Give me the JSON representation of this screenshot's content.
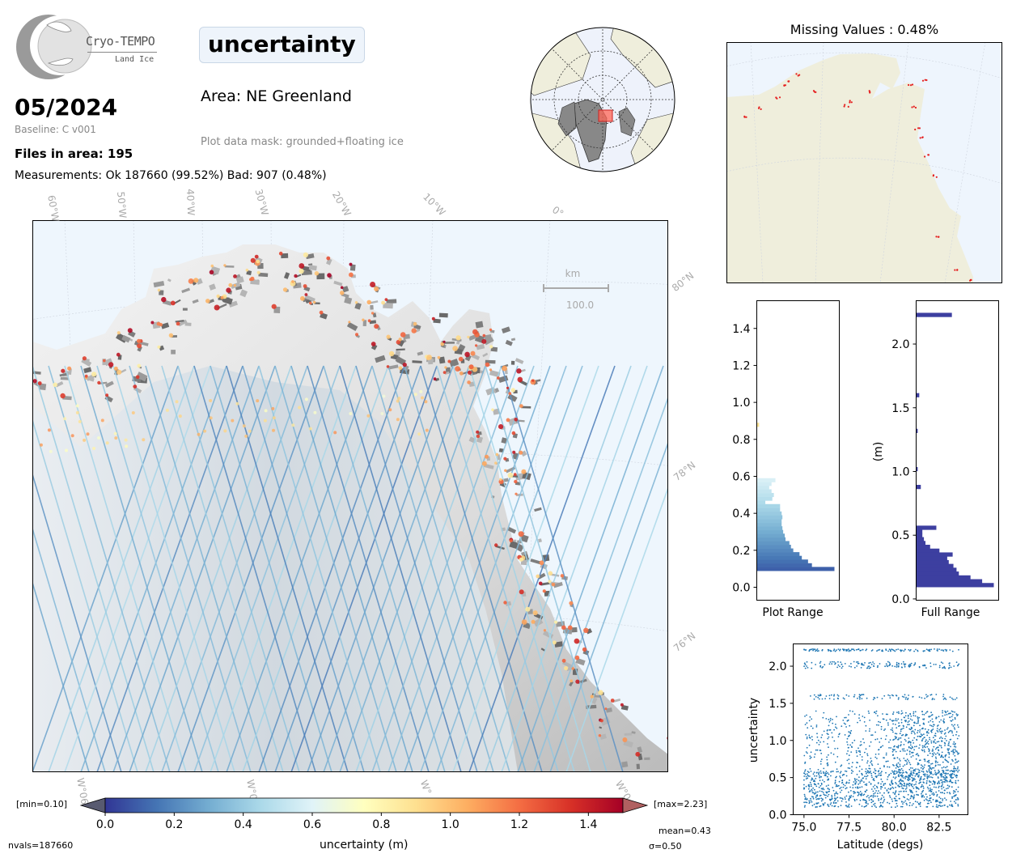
{
  "logo": {
    "name": "Cryo-TEMPO",
    "subtitle": "Land Ice"
  },
  "parameter_title": "uncertainty",
  "area": "Area: NE Greenland",
  "mask": "Plot data mask: grounded+floating ice",
  "date": "05/2024",
  "baseline": "Baseline: C v001",
  "files_in_area": "Files in area: 195",
  "measurements": "Measurements: Ok 187660 (99.52%) Bad: 907 (0.48%)",
  "missing_title": "Missing Values : 0.48%",
  "main_map": {
    "lon_labels": [
      "60°W",
      "50°W",
      "40°W",
      "30°W",
      "20°W",
      "10°W",
      "0°"
    ],
    "lat_labels": [
      "80°N",
      "78°N",
      "76°N"
    ],
    "bottom_labels": [
      "W°06",
      "W°0",
      "W°",
      "W°0"
    ],
    "scale_unit": "km",
    "scale_value": "100.0"
  },
  "colorbar": {
    "ticks": [
      "0.0",
      "0.2",
      "0.4",
      "0.6",
      "0.8",
      "1.0",
      "1.2",
      "1.4"
    ],
    "min_label": "[min=0.10]",
    "max_label": "[max=2.23]",
    "mean": "mean=0.43",
    "sigma": "σ=0.50",
    "nvals": "nvals=187660",
    "label": "uncertainty (m)"
  },
  "histograms": {
    "plot_range": {
      "xlabel": "Plot Range",
      "yticks": [
        "0.0",
        "0.2",
        "0.4",
        "0.6",
        "0.8",
        "1.0",
        "1.2",
        "1.4"
      ]
    },
    "full_range": {
      "xlabel": "Full Range",
      "ylabel": "(m)",
      "yticks": [
        "0.0",
        "0.5",
        "1.0",
        "1.5",
        "2.0"
      ]
    }
  },
  "chart_data": [
    {
      "type": "bar",
      "orientation": "horizontal",
      "xlabel": "Plot Range",
      "ylabel": "",
      "ylim": [
        -0.07,
        1.55
      ],
      "bins": [
        0.1,
        0.12,
        0.14,
        0.16,
        0.18,
        0.2,
        0.22,
        0.24,
        0.26,
        0.28,
        0.3,
        0.32,
        0.34,
        0.36,
        0.38,
        0.4,
        0.42,
        0.44,
        0.46,
        0.48,
        0.5,
        0.52,
        0.54,
        0.56,
        0.58,
        0.88
      ],
      "counts": [
        1.0,
        0.71,
        0.66,
        0.58,
        0.55,
        0.47,
        0.44,
        0.42,
        0.37,
        0.36,
        0.34,
        0.33,
        0.32,
        0.32,
        0.33,
        0.32,
        0.3,
        0.3,
        0.11,
        0.2,
        0.22,
        0.19,
        0.16,
        0.19,
        0.24,
        0.03
      ]
    },
    {
      "type": "bar",
      "orientation": "horizontal",
      "xlabel": "Full Range",
      "ylabel": "(m)",
      "ylim": [
        -0.01,
        2.34
      ],
      "bins": [
        0.11,
        0.14,
        0.17,
        0.2,
        0.23,
        0.26,
        0.29,
        0.32,
        0.35,
        0.38,
        0.41,
        0.44,
        0.47,
        0.5,
        0.53,
        0.56,
        0.88,
        1.02,
        1.32,
        1.6,
        2.23
      ],
      "counts": [
        1.0,
        0.85,
        0.7,
        0.55,
        0.52,
        0.48,
        0.42,
        0.4,
        0.47,
        0.3,
        0.18,
        0.12,
        0.1,
        0.08,
        0.08,
        0.26,
        0.06,
        0.02,
        0.02,
        0.04,
        0.46
      ]
    },
    {
      "type": "scatter",
      "xlabel": "Latitude (degs)",
      "ylabel": "uncertainty",
      "xlim": [
        74.4,
        84.1
      ],
      "ylim": [
        0.0,
        2.3
      ],
      "x_ticks": [
        75.0,
        77.5,
        80.0,
        82.5
      ],
      "y_ticks": [
        0.0,
        0.5,
        1.0,
        1.5,
        2.0
      ],
      "point_color": "#1f77b4",
      "bands": [
        {
          "x": [
            75.0,
            83.6
          ],
          "y": [
            0.1,
            0.6
          ]
        },
        {
          "x": [
            75.0,
            83.6
          ],
          "y": [
            0.55,
            1.4
          ]
        },
        {
          "x": [
            79.9,
            83.6
          ],
          "y": [
            0.5,
            1.4
          ]
        },
        {
          "x": [
            75.0,
            83.6
          ],
          "y": [
            1.55,
            1.62
          ]
        },
        {
          "x": [
            75.0,
            83.6
          ],
          "y": [
            1.97,
            2.06
          ]
        },
        {
          "x": [
            75.0,
            83.6
          ],
          "y": [
            2.2,
            2.23
          ]
        }
      ]
    }
  ],
  "colors": {
    "ocean": "#eef6fd",
    "land": "#efeedc",
    "missing_points": "#e52020",
    "inset_box": "#ff6655",
    "hist_full": "#3d3fa0"
  }
}
